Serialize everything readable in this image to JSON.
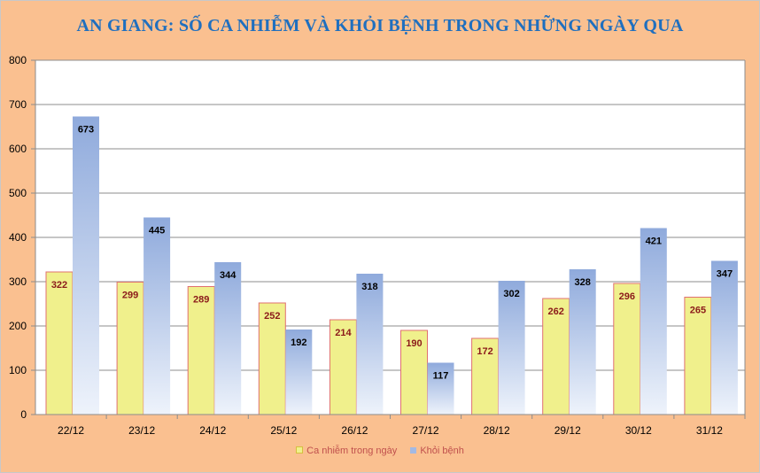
{
  "title": "AN GIANG: SỐ CA NHIỄM VÀ KHỎI BỆNH TRONG NHỮNG NGÀY QUA",
  "legend": {
    "series1": "Ca nhiễm trong ngày",
    "series2": "Khỏi bệnh"
  },
  "colors": {
    "background": "#fac090",
    "infected_fill": "#f0f08c",
    "infected_border": "#e07070",
    "infected_label": "#8b1a1a",
    "recovered_top": "#8faadc",
    "recovered_bottom": "#eef3fb",
    "recovered_label": "#000000",
    "title": "#1f6fbf",
    "legend_text": "#c0504d"
  },
  "chart_data": {
    "type": "bar",
    "title": "AN GIANG: SỐ CA NHIỄM VÀ KHỎI BỆNH TRONG NHỮNG NGÀY QUA",
    "categories": [
      "22/12",
      "23/12",
      "24/12",
      "25/12",
      "26/12",
      "27/12",
      "28/12",
      "29/12",
      "30/12",
      "31/12"
    ],
    "series": [
      {
        "name": "Ca nhiễm trong ngày",
        "values": [
          322,
          299,
          289,
          252,
          214,
          190,
          172,
          262,
          296,
          265
        ]
      },
      {
        "name": "Khỏi bệnh",
        "values": [
          673,
          445,
          344,
          192,
          318,
          117,
          302,
          328,
          421,
          347
        ]
      }
    ],
    "xlabel": "",
    "ylabel": "",
    "ylim": [
      0,
      800
    ],
    "yticks": [
      0,
      100,
      200,
      300,
      400,
      500,
      600,
      700,
      800
    ],
    "grid": true,
    "legend_position": "bottom"
  }
}
